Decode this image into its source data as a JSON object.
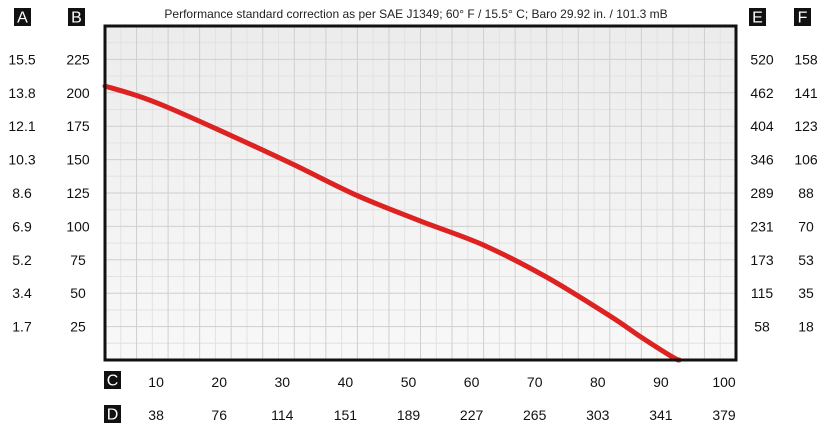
{
  "chart_data": {
    "type": "line",
    "title": "Performance standard correction as per SAE J1349;  60° F / 15.5° C;  Baro 29.92 in. / 101.3 mB",
    "axis_badges": {
      "left_outer": "A",
      "left_inner": "B",
      "right_inner": "E",
      "right_outer": "F",
      "bottom_primary": "C",
      "bottom_secondary": "D"
    },
    "x_axis": {
      "range": [
        0,
        100
      ],
      "ticks": [
        10,
        20,
        30,
        40,
        50,
        60,
        70,
        80,
        90,
        100
      ],
      "tick_labels": [
        "10",
        "20",
        "30",
        "40",
        "50",
        "60",
        "70",
        "80",
        "90",
        "100"
      ],
      "secondary_tick_labels": [
        "38",
        "76",
        "114",
        "151",
        "189",
        "227",
        "265",
        "303",
        "341",
        "379"
      ]
    },
    "y_axis": {
      "range": [
        0,
        250
      ],
      "ticks": [
        25,
        50,
        75,
        100,
        125,
        150,
        175,
        200,
        225
      ],
      "tick_labels": [
        "25",
        "50",
        "75",
        "100",
        "125",
        "150",
        "175",
        "200",
        "225"
      ],
      "outer_left_labels": [
        "1.7",
        "3.4",
        "5.2",
        "6.9",
        "8.6",
        "10.3",
        "12.1",
        "13.8",
        "15.5"
      ],
      "inner_right_labels": [
        "58",
        "115",
        "173",
        "231",
        "289",
        "346",
        "404",
        "462",
        "520"
      ],
      "outer_right_labels": [
        "18",
        "35",
        "53",
        "70",
        "88",
        "106",
        "123",
        "141",
        "158"
      ]
    },
    "grid": true,
    "series": [
      {
        "color": "#dd2222",
        "x": [
          0,
          5,
          10,
          20,
          30,
          40,
          50,
          60,
          70,
          80,
          85,
          90,
          91
        ],
        "y": [
          205,
          198,
          189,
          168,
          146,
          123,
          104,
          86,
          62,
          33,
          17,
          2,
          0
        ]
      }
    ]
  }
}
